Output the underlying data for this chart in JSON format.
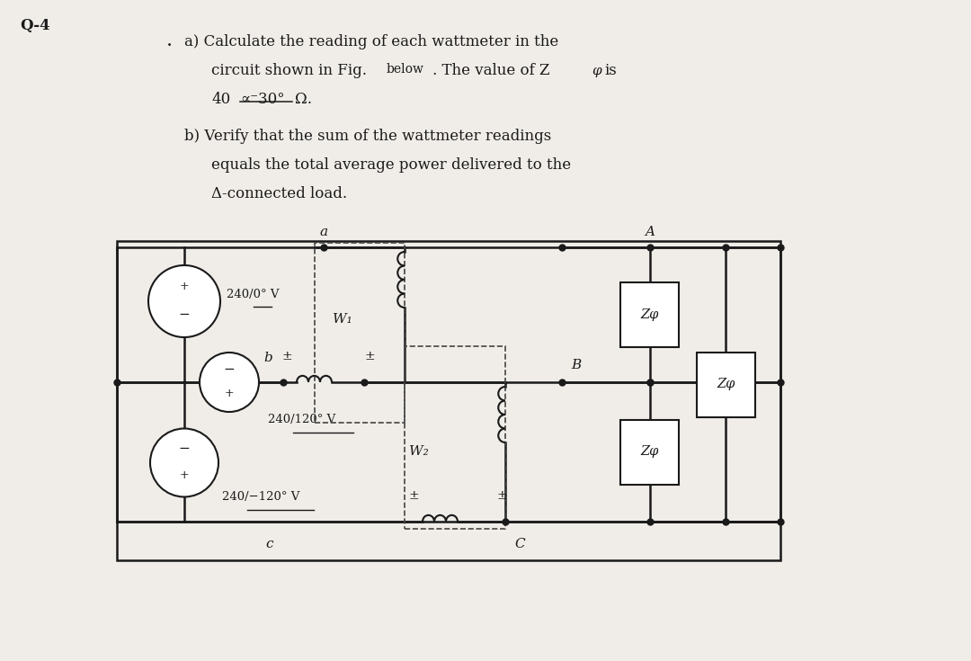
{
  "bg_color": "#f0ede8",
  "title_label": "Q-4",
  "line_color": "#1a1a1a",
  "dashed_color": "#444444",
  "node_color": "#1a1a1a",
  "volt_a": "240/0° V",
  "volt_b": "240/120° V",
  "volt_c": "240/−120° V",
  "label_a": "a",
  "label_b": "b",
  "label_c": "c",
  "label_A": "A",
  "label_B": "B",
  "label_C": "C",
  "label_W1": "W₁",
  "label_W2": "W₂",
  "label_Z": "Zφ"
}
